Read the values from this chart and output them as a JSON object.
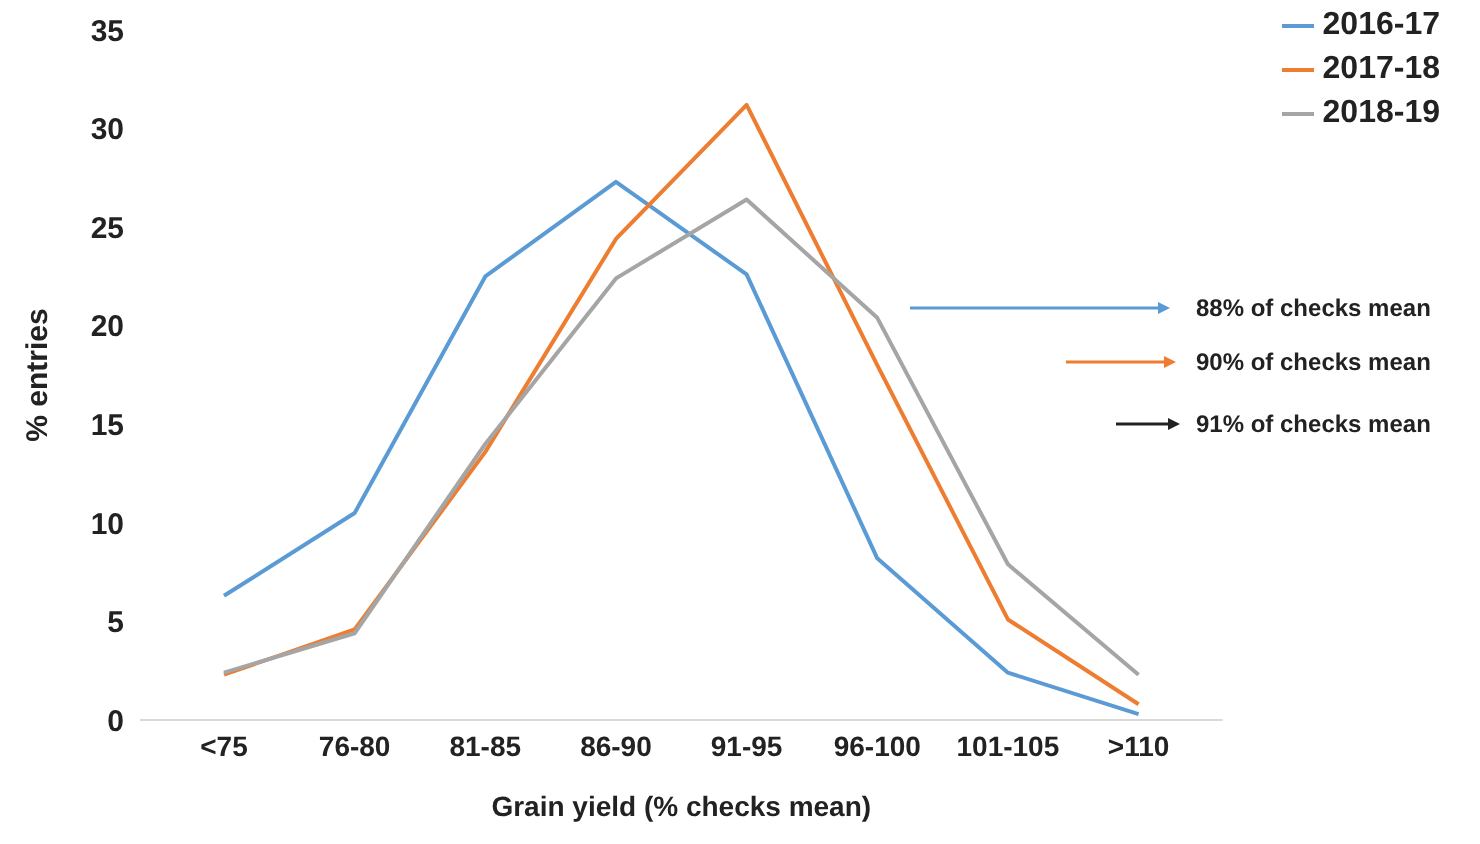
{
  "chart_data": {
    "type": "line",
    "xlabel": "Grain yield (% checks mean)",
    "ylabel": "% entries",
    "categories": [
      "<75",
      "76-80",
      "81-85",
      "86-90",
      "91-95",
      "96-100",
      "101-105",
      ">110"
    ],
    "series": [
      {
        "name": "2016-17",
        "color": "#5b9bd5",
        "values": [
          6.3,
          10.5,
          22.5,
          27.3,
          22.6,
          8.2,
          2.4,
          0.3
        ]
      },
      {
        "name": "2017-18",
        "color": "#ed7d31",
        "values": [
          2.3,
          4.6,
          13.6,
          24.4,
          31.2,
          18,
          5.1,
          0.8
        ]
      },
      {
        "name": "2018-19",
        "color": "#a5a5a5",
        "values": [
          2.4,
          4.4,
          14,
          22.4,
          26.4,
          20.4,
          7.9,
          2.3
        ]
      }
    ],
    "ylim": [
      0,
      35
    ],
    "yticks": [
      0,
      5,
      10,
      15,
      20,
      25,
      30,
      35
    ],
    "grid": false,
    "legend": "top right",
    "marker": "none",
    "line_style": "solid",
    "annotations": [
      "88% of checks mean",
      "90% of checks mean",
      "91% of checks mean"
    ]
  }
}
